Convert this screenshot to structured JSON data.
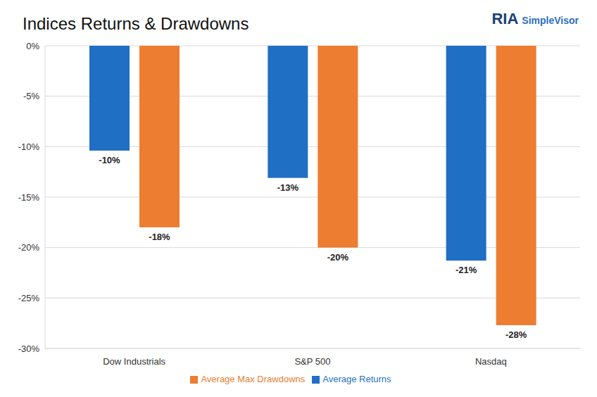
{
  "chart_data": {
    "type": "bar",
    "title": "Indices Returns & Drawdowns",
    "annotations": [
      "RIA",
      "SimpleVisor"
    ],
    "categories": [
      "Dow Industrials",
      "S&P 500",
      "Nasdaq"
    ],
    "series": [
      {
        "name": "Average Returns",
        "color": "#1f6fc4",
        "values": [
          -10.4,
          -13.1,
          -21.3
        ],
        "value_labels": [
          "-10%",
          "-13%",
          "-21%"
        ]
      },
      {
        "name": "Average Max Drawdowns",
        "color": "#ed7d31",
        "values": [
          -18,
          -20,
          -27.7
        ],
        "value_labels": [
          "-18%",
          "-20%",
          "-28%"
        ]
      }
    ],
    "ylim": [
      -30,
      0
    ],
    "yticks": [
      {
        "value": 0,
        "label": "0%"
      },
      {
        "value": -5,
        "label": "-5%"
      },
      {
        "value": -10,
        "label": "-10%"
      },
      {
        "value": -15,
        "label": "-15%"
      },
      {
        "value": -20,
        "label": "-20%"
      },
      {
        "value": -25,
        "label": "-25%"
      },
      {
        "value": -30,
        "label": "-30%"
      }
    ],
    "grid": true,
    "data_labels": true,
    "legend": "bottom"
  }
}
